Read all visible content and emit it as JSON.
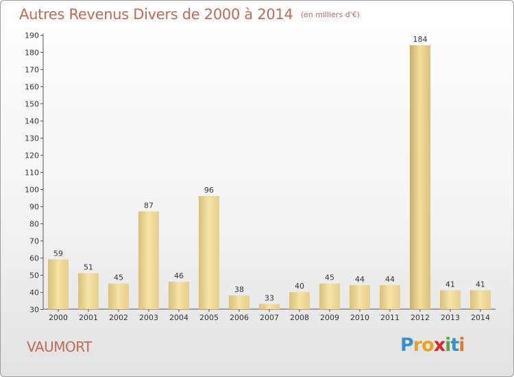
{
  "title": "Autres Revenus Divers de 2000 à 2014",
  "subtitle": "(en milliers d'€)",
  "commune": "VAUMORT",
  "logo": {
    "letters": [
      "P",
      "r",
      "o",
      "x",
      "i",
      "t",
      "i"
    ],
    "colors": [
      "#3a8fd0",
      "#e8a21c",
      "#e8a21c",
      "#d9262b",
      "#55a83b",
      "#3a8fd0",
      "#e07a1a"
    ]
  },
  "colors": {
    "title": "#c06a55",
    "bar_light": "#f3dfa0",
    "bar_dark": "#c7ad6c"
  },
  "chart_data": {
    "type": "bar",
    "categories": [
      "2000",
      "2001",
      "2002",
      "2003",
      "2004",
      "2005",
      "2006",
      "2007",
      "2008",
      "2009",
      "2010",
      "2011",
      "2012",
      "2013",
      "2014"
    ],
    "values": [
      59,
      51,
      45,
      87,
      46,
      96,
      38,
      33,
      40,
      45,
      44,
      44,
      184,
      41,
      41
    ],
    "ylim": [
      30,
      190
    ],
    "yticks": [
      30,
      40,
      50,
      60,
      70,
      80,
      90,
      100,
      110,
      120,
      130,
      140,
      150,
      160,
      170,
      180,
      190
    ],
    "title": "Autres Revenus Divers de 2000 à 2014",
    "xlabel": "",
    "ylabel": "",
    "grid": false,
    "data_labels": true
  }
}
